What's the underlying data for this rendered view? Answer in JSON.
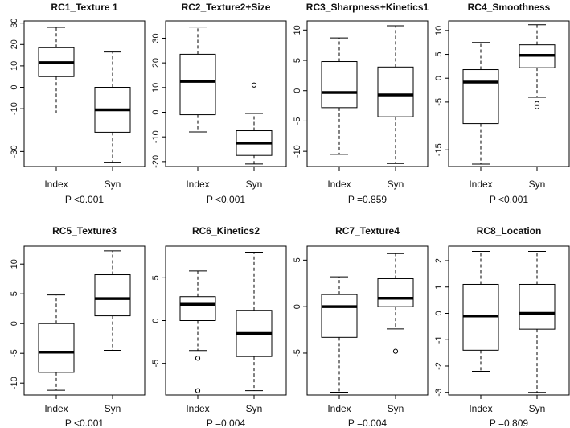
{
  "chart_data": [
    {
      "type": "box",
      "title": "RC1_Texture 1",
      "categories": [
        "Index",
        "Syn"
      ],
      "ylim": [
        -37,
        31
      ],
      "yticks": [
        -30,
        -10,
        0,
        10,
        20,
        30
      ],
      "pvalue": "P <0.001",
      "boxes": [
        {
          "category": "Index",
          "whisker_low": -12,
          "q1": 5,
          "median": 11.5,
          "q3": 18.5,
          "whisker_high": 28,
          "outliers": []
        },
        {
          "category": "Syn",
          "whisker_low": -35,
          "q1": -21,
          "median": -10.5,
          "q3": 0,
          "whisker_high": 16.5,
          "outliers": []
        }
      ]
    },
    {
      "type": "box",
      "title": "RC2_Texture2+Size",
      "categories": [
        "Index",
        "Syn"
      ],
      "ylim": [
        -22,
        37
      ],
      "yticks": [
        -20,
        -10,
        0,
        10,
        20,
        30
      ],
      "pvalue": "P <0.001",
      "boxes": [
        {
          "category": "Index",
          "whisker_low": -8,
          "q1": -1,
          "median": 12.5,
          "q3": 23.5,
          "whisker_high": 34.5,
          "outliers": []
        },
        {
          "category": "Syn",
          "whisker_low": -21,
          "q1": -17.5,
          "median": -12.5,
          "q3": -7.5,
          "whisker_high": -0.5,
          "outliers": [
            11
          ]
        }
      ]
    },
    {
      "type": "box",
      "title": "RC3_Sharpness+Kinetics1",
      "categories": [
        "Index",
        "Syn"
      ],
      "ylim": [
        -12.5,
        11.5
      ],
      "yticks": [
        -10,
        -5,
        0,
        5,
        10
      ],
      "pvalue": "P =0.859",
      "boxes": [
        {
          "category": "Index",
          "whisker_low": -10.5,
          "q1": -2.8,
          "median": -0.3,
          "q3": 4.8,
          "whisker_high": 8.7,
          "outliers": []
        },
        {
          "category": "Syn",
          "whisker_low": -12,
          "q1": -4.3,
          "median": -0.7,
          "q3": 3.9,
          "whisker_high": 10.7,
          "outliers": []
        }
      ]
    },
    {
      "type": "box",
      "title": "RC4_Smoothness",
      "categories": [
        "Index",
        "Syn"
      ],
      "ylim": [
        -18.5,
        12
      ],
      "yticks": [
        -15,
        -5,
        0,
        5,
        10
      ],
      "pvalue": "P <0.001",
      "boxes": [
        {
          "category": "Index",
          "whisker_low": -18,
          "q1": -9.5,
          "median": -0.8,
          "q3": 1.8,
          "whisker_high": 7.5,
          "outliers": []
        },
        {
          "category": "Syn",
          "whisker_low": -4,
          "q1": 2.2,
          "median": 4.8,
          "q3": 7.0,
          "whisker_high": 11.2,
          "outliers": [
            -5.3,
            -6.0
          ]
        }
      ]
    },
    {
      "type": "box",
      "title": "RC5_Texture3",
      "categories": [
        "Index",
        "Syn"
      ],
      "ylim": [
        -12,
        13
      ],
      "yticks": [
        -10,
        -5,
        0,
        5,
        10
      ],
      "pvalue": "P <0.001",
      "boxes": [
        {
          "category": "Index",
          "whisker_low": -11.2,
          "q1": -8.2,
          "median": -4.8,
          "q3": 0,
          "whisker_high": 4.8,
          "outliers": []
        },
        {
          "category": "Syn",
          "whisker_low": -4.5,
          "q1": 1.3,
          "median": 4.2,
          "q3": 8.2,
          "whisker_high": 12.2,
          "outliers": []
        }
      ]
    },
    {
      "type": "box",
      "title": "RC6_Kinetics2",
      "categories": [
        "Index",
        "Syn"
      ],
      "ylim": [
        -8.7,
        8.7
      ],
      "yticks": [
        -5,
        0,
        5
      ],
      "pvalue": "P =0.004",
      "boxes": [
        {
          "category": "Index",
          "whisker_low": -3.5,
          "q1": 0,
          "median": 1.9,
          "q3": 2.8,
          "whisker_high": 5.8,
          "outliers": [
            -4.4,
            -8.2
          ]
        },
        {
          "category": "Syn",
          "whisker_low": -8.2,
          "q1": -4.2,
          "median": -1.5,
          "q3": 1.2,
          "whisker_high": 8.0,
          "outliers": []
        }
      ]
    },
    {
      "type": "box",
      "title": "RC7_Texture4",
      "categories": [
        "Index",
        "Syn"
      ],
      "ylim": [
        -9.5,
        6.5
      ],
      "yticks": [
        -5,
        0,
        5
      ],
      "pvalue": "P =0.004",
      "boxes": [
        {
          "category": "Index",
          "whisker_low": -9.2,
          "q1": -3.3,
          "median": 0,
          "q3": 1.3,
          "whisker_high": 3.2,
          "outliers": []
        },
        {
          "category": "Syn",
          "whisker_low": -2.4,
          "q1": 0,
          "median": 0.9,
          "q3": 3.0,
          "whisker_high": 5.7,
          "outliers": [
            -4.8
          ]
        }
      ]
    },
    {
      "type": "box",
      "title": "RC8_Location",
      "categories": [
        "Index",
        "Syn"
      ],
      "ylim": [
        -3.1,
        2.55
      ],
      "yticks": [
        -3,
        -2,
        -1,
        0,
        1,
        2
      ],
      "pvalue": "P =0.809",
      "boxes": [
        {
          "category": "Index",
          "whisker_low": -2.2,
          "q1": -1.4,
          "median": -0.1,
          "q3": 1.1,
          "whisker_high": 2.35,
          "outliers": []
        },
        {
          "category": "Syn",
          "whisker_low": -3.0,
          "q1": -0.6,
          "median": 0,
          "q3": 1.1,
          "whisker_high": 2.35,
          "outliers": []
        }
      ]
    }
  ]
}
